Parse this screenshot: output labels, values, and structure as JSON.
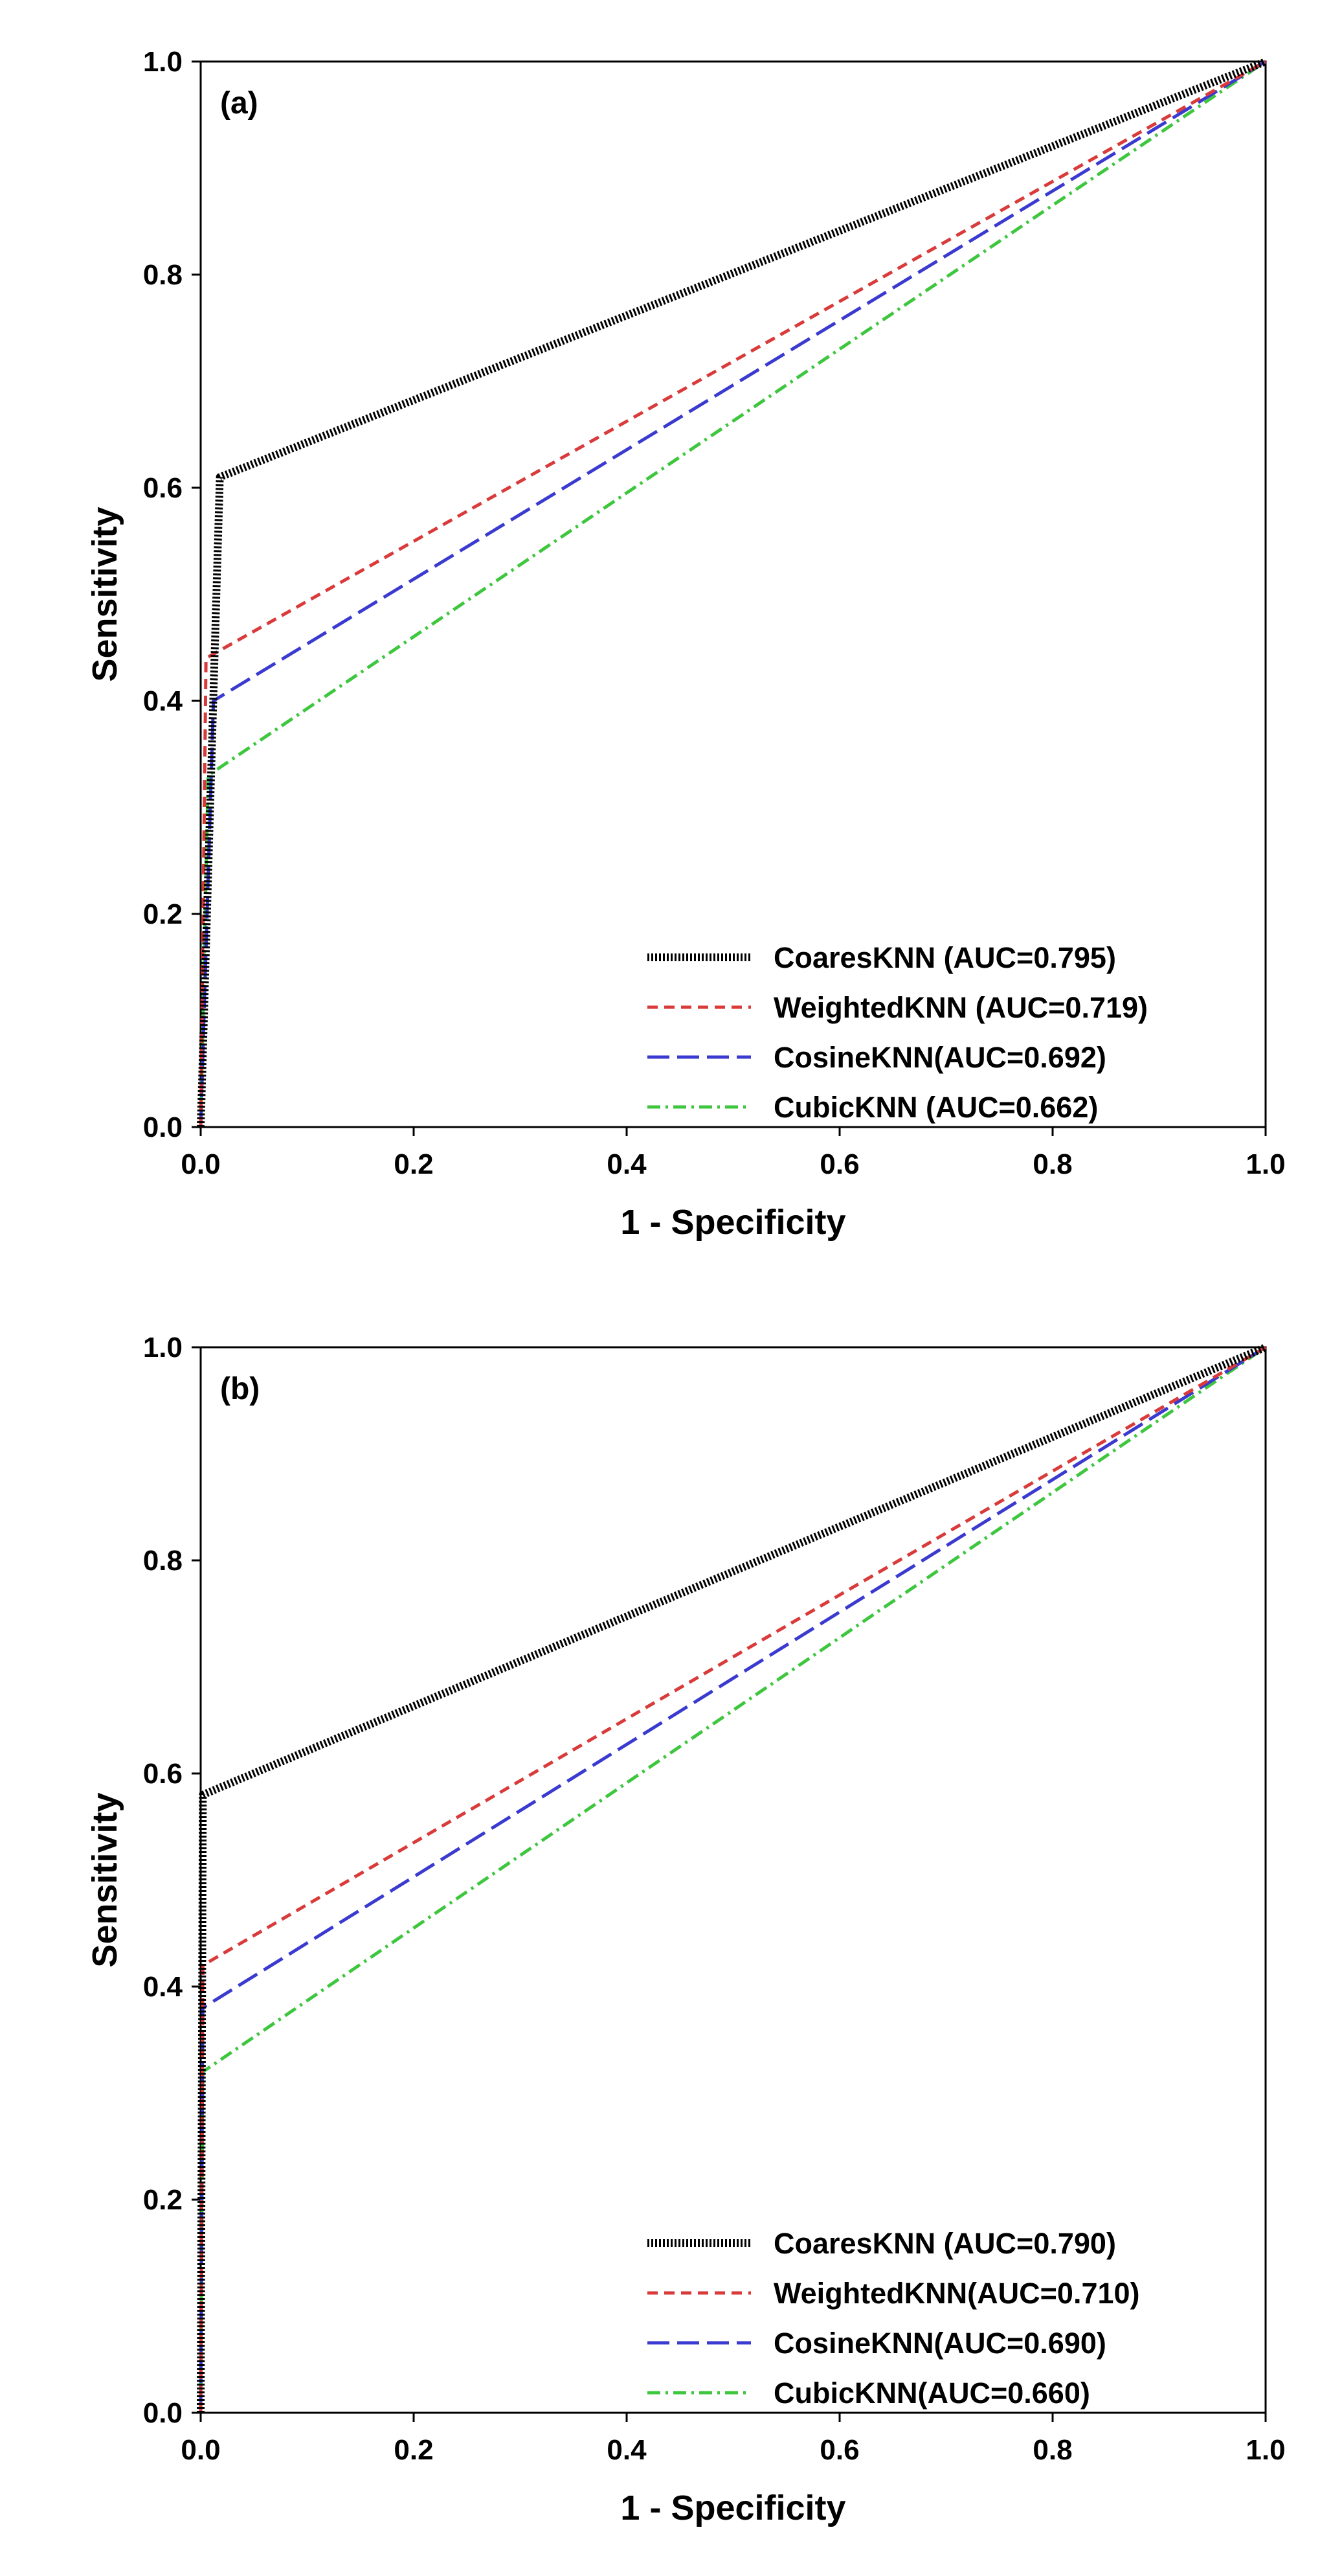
{
  "chart_data": [
    {
      "type": "line",
      "panel_label": "(a)",
      "xlabel": "1 - Specificity",
      "ylabel": "Sensitivity",
      "xlim": [
        0,
        1
      ],
      "ylim": [
        0,
        1
      ],
      "xticks": [
        "0.0",
        "0.2",
        "0.4",
        "0.6",
        "0.8",
        "1.0"
      ],
      "yticks": [
        "0.0",
        "0.2",
        "0.4",
        "0.6",
        "0.8",
        "1.0"
      ],
      "legend_position": "bottom-right",
      "series": [
        {
          "name": "CoaresKNN (AUC=0.795)",
          "color": "#000000",
          "style": "dotted",
          "x": [
            0,
            0.018,
            1
          ],
          "y": [
            0,
            0.61,
            1
          ]
        },
        {
          "name": "WeightedKNN (AUC=0.719)",
          "color": "#d93a3a",
          "style": "dashed",
          "x": [
            0,
            0.005,
            1
          ],
          "y": [
            0,
            0.44,
            1
          ]
        },
        {
          "name": "CosineKNN(AUC=0.692)",
          "color": "#3a3ad0",
          "style": "longdash",
          "x": [
            0,
            0.012,
            1
          ],
          "y": [
            0,
            0.4,
            1
          ]
        },
        {
          "name": "CubicKNN (AUC=0.662)",
          "color": "#3ec63e",
          "style": "dashdot",
          "x": [
            0,
            0.007,
            1
          ],
          "y": [
            0,
            0.33,
            1
          ]
        }
      ]
    },
    {
      "type": "line",
      "panel_label": "(b)",
      "xlabel": "1 - Specificity",
      "ylabel": "Sensitivity",
      "xlim": [
        0,
        1
      ],
      "ylim": [
        0,
        1
      ],
      "xticks": [
        "0.0",
        "0.2",
        "0.4",
        "0.6",
        "0.8",
        "1.0"
      ],
      "yticks": [
        "0.0",
        "0.2",
        "0.4",
        "0.6",
        "0.8",
        "1.0"
      ],
      "legend_position": "bottom-right",
      "series": [
        {
          "name": "CoaresKNN (AUC=0.790)",
          "color": "#000000",
          "style": "dotted",
          "x": [
            0,
            0.002,
            1
          ],
          "y": [
            0,
            0.58,
            1
          ]
        },
        {
          "name": "WeightedKNN(AUC=0.710)",
          "color": "#d93a3a",
          "style": "dashed",
          "x": [
            0,
            0.002,
            1
          ],
          "y": [
            0,
            0.42,
            1
          ]
        },
        {
          "name": "CosineKNN(AUC=0.690)",
          "color": "#3a3ad0",
          "style": "longdash",
          "x": [
            0,
            0.002,
            1
          ],
          "y": [
            0,
            0.38,
            1
          ]
        },
        {
          "name": "CubicKNN(AUC=0.660)",
          "color": "#3ec63e",
          "style": "dashdot",
          "x": [
            0,
            0.002,
            1
          ],
          "y": [
            0,
            0.32,
            1
          ]
        }
      ]
    }
  ]
}
